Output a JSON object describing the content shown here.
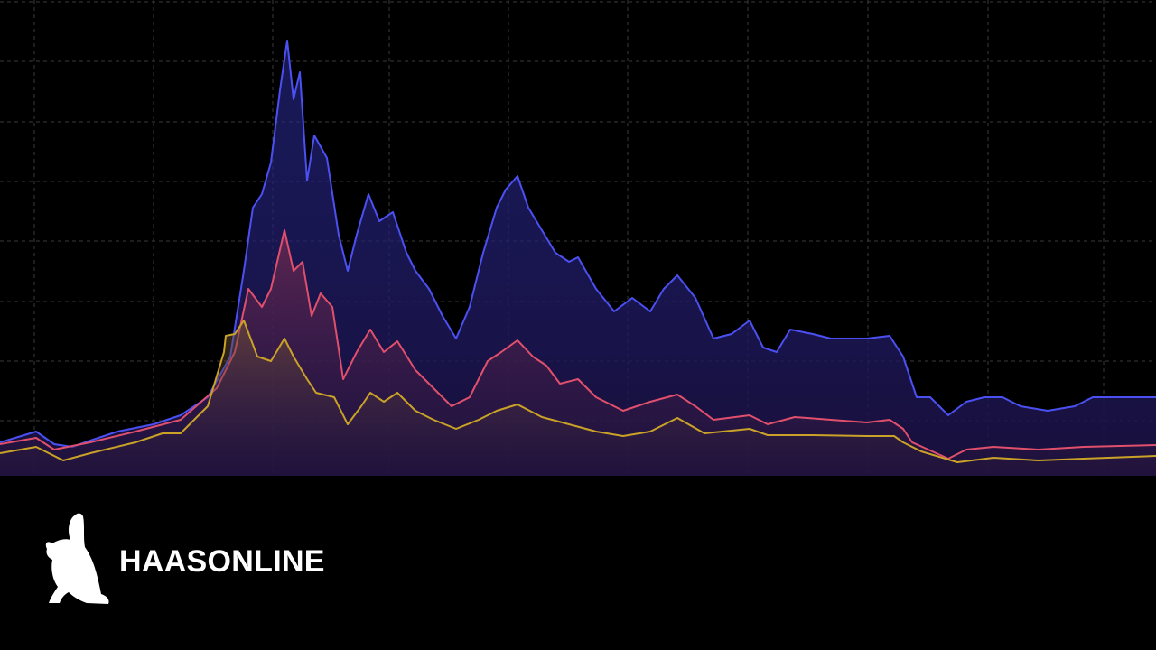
{
  "chart_data": {
    "type": "line",
    "xlim": [
      0,
      1280
    ],
    "ylim": [
      0,
      527
    ],
    "xticks": [
      38,
      170,
      302,
      431,
      563,
      695,
      828,
      961,
      1094,
      1222
    ],
    "yticks": [
      61,
      127,
      193,
      260,
      326,
      392,
      459,
      525
    ],
    "grid": true,
    "area": true,
    "series": [
      {
        "color": "#4b50f2",
        "x": [
          0,
          40,
          60,
          80,
          100,
          130,
          170,
          200,
          230,
          255,
          270,
          280,
          290,
          300,
          310,
          318,
          325,
          332,
          340,
          348,
          362,
          375,
          385,
          395,
          408,
          420,
          435,
          450,
          460,
          475,
          490,
          505,
          520,
          535,
          550,
          560,
          573,
          585,
          600,
          615,
          630,
          640,
          660,
          680,
          700,
          720,
          735,
          750,
          770,
          790,
          810,
          830,
          845,
          860,
          875,
          900,
          920,
          940,
          960,
          985,
          1000,
          1015,
          1030,
          1050,
          1070,
          1090,
          1110,
          1130,
          1160,
          1190,
          1210,
          1240,
          1280
        ],
        "values": [
          37,
          49,
          35,
          32,
          39,
          49,
          57,
          67,
          87,
          132,
          227,
          297,
          312,
          347,
          427,
          482,
          417,
          447,
          327,
          377,
          352,
          267,
          227,
          267,
          312,
          282,
          292,
          247,
          227,
          207,
          177,
          152,
          187,
          247,
          297,
          317,
          332,
          297,
          272,
          247,
          237,
          242,
          207,
          182,
          197,
          182,
          207,
          222,
          197,
          152,
          157,
          172,
          142,
          137,
          162,
          157,
          152,
          152,
          152,
          155,
          132,
          87,
          87,
          67,
          82,
          87,
          87,
          77,
          72,
          77,
          87,
          87,
          87
        ]
      },
      {
        "color": "#e0506c",
        "x": [
          0,
          40,
          60,
          100,
          150,
          200,
          240,
          260,
          275,
          290,
          300,
          315,
          325,
          335,
          345,
          355,
          368,
          380,
          395,
          410,
          425,
          440,
          460,
          480,
          500,
          520,
          540,
          555,
          573,
          590,
          605,
          620,
          640,
          660,
          690,
          720,
          750,
          770,
          790,
          830,
          850,
          880,
          920,
          960,
          985,
          1000,
          1010,
          1050,
          1070,
          1100,
          1150,
          1200,
          1280
        ],
        "values": [
          35,
          42,
          29,
          37,
          49,
          62,
          97,
          137,
          207,
          187,
          207,
          272,
          227,
          237,
          177,
          202,
          187,
          107,
          137,
          162,
          137,
          149,
          117,
          97,
          77,
          87,
          127,
          137,
          150,
          132,
          122,
          102,
          107,
          87,
          72,
          82,
          90,
          77,
          62,
          67,
          57,
          65,
          62,
          59,
          62,
          52,
          37,
          19,
          29,
          32,
          29,
          32,
          34
        ]
      },
      {
        "color": "#c9a227",
        "x": [
          0,
          40,
          70,
          100,
          150,
          180,
          200,
          230,
          248,
          250,
          260,
          270,
          285,
          300,
          315,
          325,
          340,
          350,
          370,
          385,
          400,
          410,
          425,
          440,
          460,
          480,
          505,
          530,
          550,
          573,
          600,
          630,
          660,
          690,
          720,
          750,
          780,
          830,
          850,
          900,
          960,
          990,
          1000,
          1020,
          1060,
          1100,
          1150,
          1200,
          1280
        ],
        "values": [
          25,
          32,
          17,
          25,
          37,
          47,
          47,
          77,
          137,
          155,
          157,
          172,
          132,
          127,
          152,
          132,
          107,
          92,
          87,
          57,
          77,
          92,
          82,
          92,
          72,
          62,
          52,
          62,
          72,
          79,
          65,
          57,
          49,
          44,
          49,
          64,
          47,
          52,
          45,
          45,
          44,
          44,
          37,
          27,
          15,
          20,
          17,
          19,
          22
        ]
      }
    ]
  },
  "brand": {
    "name": "HAASONLINE"
  }
}
